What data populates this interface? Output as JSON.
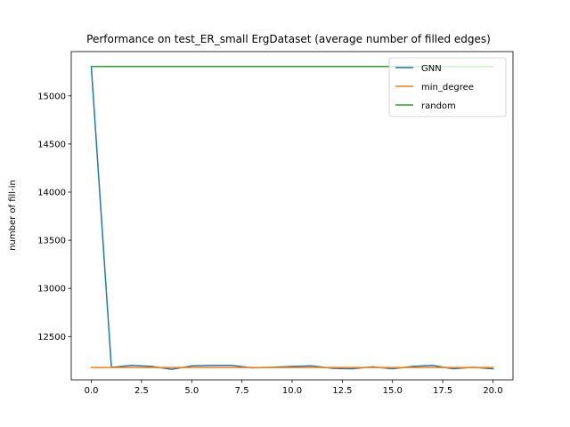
{
  "chart_data": {
    "type": "line",
    "title": "Performance on test_ER_small ErgDataset (average number of filled edges)",
    "xlabel": "",
    "ylabel": "number of fill-in",
    "xlim": [
      -1.0,
      21.0
    ],
    "ylim": [
      12050,
      15460
    ],
    "x_ticks": [
      0.0,
      2.5,
      5.0,
      7.5,
      10.0,
      12.5,
      15.0,
      17.5,
      20.0
    ],
    "x_tick_labels": [
      "0.0",
      "2.5",
      "5.0",
      "7.5",
      "10.0",
      "12.5",
      "15.0",
      "17.5",
      "20.0"
    ],
    "y_ticks": [
      12500,
      13000,
      13500,
      14000,
      14500,
      15000
    ],
    "y_tick_labels": [
      "12500",
      "13000",
      "13500",
      "14000",
      "14500",
      "15000"
    ],
    "x": [
      0,
      1,
      2,
      3,
      4,
      5,
      6,
      7,
      8,
      9,
      10,
      11,
      12,
      13,
      14,
      15,
      16,
      17,
      18,
      19,
      20
    ],
    "series": [
      {
        "name": "GNN",
        "color": "#1f77b4",
        "values": [
          15300,
          12180,
          12200,
          12190,
          12160,
          12195,
          12200,
          12200,
          12175,
          12180,
          12190,
          12195,
          12170,
          12165,
          12185,
          12165,
          12190,
          12200,
          12165,
          12180,
          12165
        ]
      },
      {
        "name": "min_degree",
        "color": "#ff7f0e",
        "values": [
          12178,
          12178,
          12178,
          12178,
          12178,
          12178,
          12178,
          12178,
          12178,
          12178,
          12178,
          12178,
          12178,
          12178,
          12178,
          12178,
          12178,
          12178,
          12178,
          12178,
          12178
        ]
      },
      {
        "name": "random",
        "color": "#2ca02c",
        "values": [
          15305,
          15305,
          15305,
          15305,
          15305,
          15305,
          15305,
          15305,
          15305,
          15305,
          15305,
          15305,
          15305,
          15305,
          15305,
          15305,
          15305,
          15305,
          15305,
          15305,
          15305
        ]
      }
    ],
    "legend": "top-right",
    "grid": false
  }
}
